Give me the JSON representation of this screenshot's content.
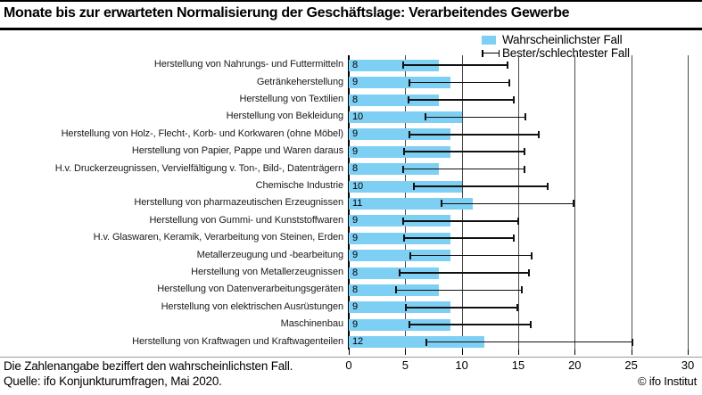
{
  "title": "Monate bis zur erwarteten Normalisierung der Geschäftslage: Verarbeitendes Gewerbe",
  "legend": {
    "likely_label": "Wahrscheinlichster Fall",
    "range_label": "Bester/schlechtester Fall"
  },
  "footer": {
    "note": "Die Zahlenangabe beziffert den wahrscheinlichsten Fall.",
    "source": "Quelle: ifo Konjunkturumfragen, Mai 2020.",
    "credit": "© ifo Institut"
  },
  "colors": {
    "bar": "#7ecff4",
    "grid": "#4a4a4a",
    "axis": "#000000",
    "whisker": "#111111",
    "footer_rule": "#9a9a9a"
  },
  "chart_data": {
    "type": "bar",
    "orientation": "horizontal",
    "title": "Monate bis zur erwarteten Normalisierung der Geschäftslage: Verarbeitendes Gewerbe",
    "categories": [
      "Herstellung von Nahrungs- und Futtermitteln",
      "Getränkeherstellung",
      "Herstellung von Textilien",
      "Herstellung von Bekleidung",
      "Herstellung von Holz-, Flecht-, Korb- und Korkwaren (ohne Möbel)",
      "Herstellung von Papier, Pappe und Waren daraus",
      "H.v. Druckerzeugnissen, Vervielfältigung v. Ton-, Bild-, Datenträgern",
      "Chemische Industrie",
      "Herstellung von pharmazeutischen Erzeugnissen",
      "Herstellung von Gummi- und Kunststoffwaren",
      "H.v. Glaswaren, Keramik, Verarbeitung von Steinen, Erden",
      "Metallerzeugung und -bearbeitung",
      "Herstellung von Metallerzeugnissen",
      "Herstellung von Datenverarbeitungsgeräten",
      "Herstellung von elektrischen Ausrüstungen",
      "Maschinenbau",
      "Herstellung von Kraftwagen und Kraftwagenteilen"
    ],
    "series": [
      {
        "name": "Wahrscheinlichster Fall",
        "role": "bar",
        "values": [
          8,
          9,
          8,
          10,
          9,
          9,
          8,
          10,
          11,
          9,
          9,
          9,
          8,
          8,
          9,
          9,
          12
        ]
      },
      {
        "name": "Bester Fall (Whisker-Minimum)",
        "role": "whisker-min",
        "values": [
          4.7,
          5.3,
          5.2,
          6.7,
          5.3,
          4.8,
          4.7,
          5.7,
          8.1,
          4.7,
          4.8,
          5.4,
          4.4,
          4.1,
          5.0,
          5.3,
          6.8
        ]
      },
      {
        "name": "Schlechtester Fall (Whisker-Maximum)",
        "role": "whisker-max",
        "values": [
          14.1,
          14.3,
          14.7,
          15.7,
          16.9,
          15.6,
          15.6,
          17.7,
          20.0,
          15.1,
          14.7,
          16.3,
          16.0,
          15.4,
          15.0,
          16.2,
          25.2
        ]
      }
    ],
    "xlim": [
      0,
      30
    ],
    "xticks": [
      0,
      5,
      10,
      15,
      20,
      25,
      30
    ],
    "grid": "vertical",
    "legend_position": "top-right",
    "value_labels": "inside-left"
  }
}
